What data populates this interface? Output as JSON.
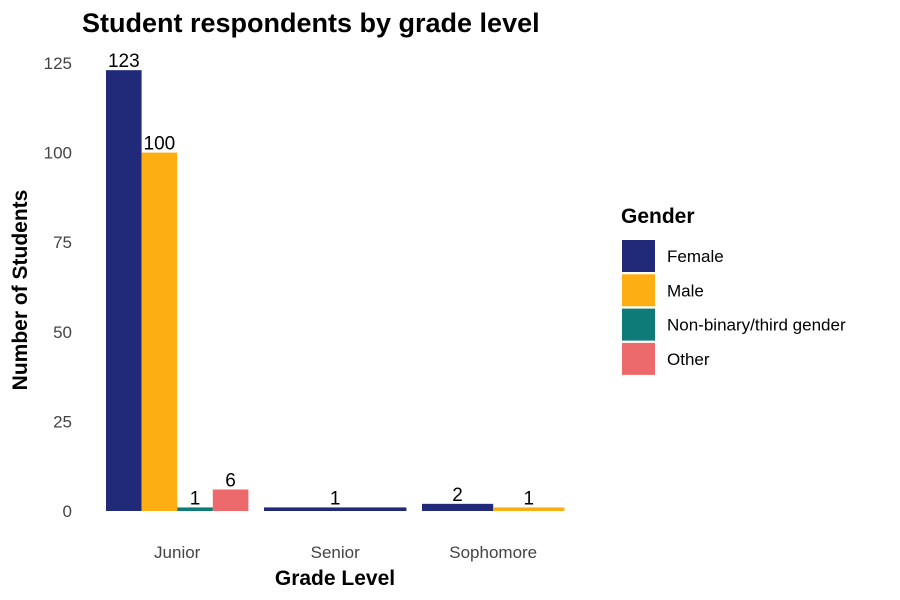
{
  "chart_data": {
    "type": "bar",
    "title": "Student respondents by grade level",
    "xlabel": "Grade Level",
    "ylabel": "Number of Students",
    "categories": [
      "Junior",
      "Senior",
      "Sophomore"
    ],
    "ylim": [
      0,
      125
    ],
    "yticks": [
      0,
      25,
      50,
      75,
      100,
      125
    ],
    "grid": false,
    "legend": {
      "title": "Gender",
      "position": "right"
    },
    "series": [
      {
        "name": "Female",
        "color": "#202A78",
        "values": [
          123,
          1,
          2
        ]
      },
      {
        "name": "Male",
        "color": "#FDAE12",
        "values": [
          100,
          null,
          1
        ]
      },
      {
        "name": "Non-binary/third gender",
        "color": "#0F7B78",
        "values": [
          1,
          null,
          null
        ]
      },
      {
        "name": "Other",
        "color": "#EC6A6C",
        "values": [
          6,
          null,
          null
        ]
      }
    ]
  }
}
